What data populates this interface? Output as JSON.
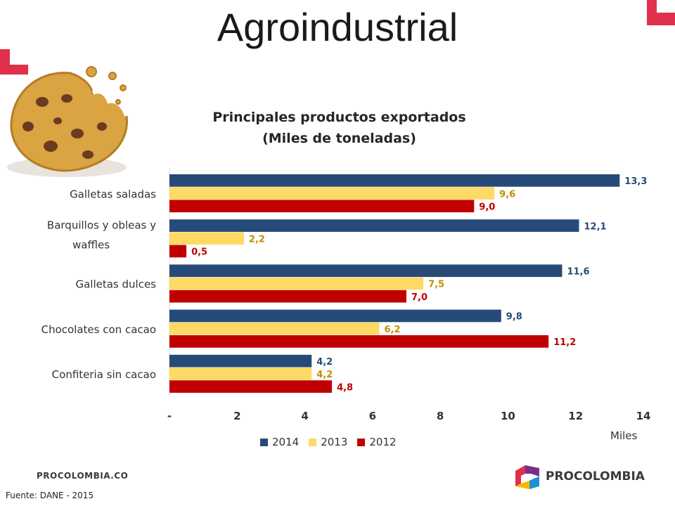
{
  "page_title": "Agroindustrial",
  "footer": {
    "site": "PROCOLOMBIA.CO",
    "brand": "PROCOLOMBIA",
    "source": "Fuente: DANE - 2015"
  },
  "colors": {
    "2014": "#264b78",
    "2013": "#ffd966",
    "2012": "#c00000",
    "label_2014": "#264b78",
    "label_2013": "#bf9000",
    "label_2012": "#c00000",
    "accent": "#e0304b"
  },
  "icons": [
    "cookie-illustration",
    "corner-bracket",
    "procolombia-logo"
  ],
  "chart_data": {
    "type": "bar",
    "orientation": "horizontal",
    "title_line1": "Principales productos exportados",
    "title_line2": "(Miles de toneladas)",
    "categories": [
      "Galletas saladas",
      "Barquillos y obleas y waffles",
      "Galletas dulces",
      "Chocolates con cacao",
      "Confiteria sin cacao"
    ],
    "series": [
      {
        "name": "2014",
        "values": [
          13.3,
          12.1,
          11.6,
          9.8,
          4.2
        ],
        "labels": [
          "13,3",
          "12,1",
          "11,6",
          "9,8",
          "4,2"
        ]
      },
      {
        "name": "2013",
        "values": [
          9.6,
          2.2,
          7.5,
          6.2,
          4.2
        ],
        "labels": [
          "9,6",
          "2,2",
          "7,5",
          "6,2",
          "4,2"
        ]
      },
      {
        "name": "2012",
        "values": [
          9.0,
          0.5,
          7.0,
          11.2,
          4.8
        ],
        "labels": [
          "9,0",
          "0,5",
          "7,0",
          "11,2",
          "4,8"
        ]
      }
    ],
    "x_ticks": [
      "-",
      "2",
      "4",
      "6",
      "8",
      "10",
      "12",
      "14"
    ],
    "x_unit_label": "Miles",
    "xlim": [
      0,
      14
    ],
    "grid": false,
    "legend_position": "bottom"
  }
}
